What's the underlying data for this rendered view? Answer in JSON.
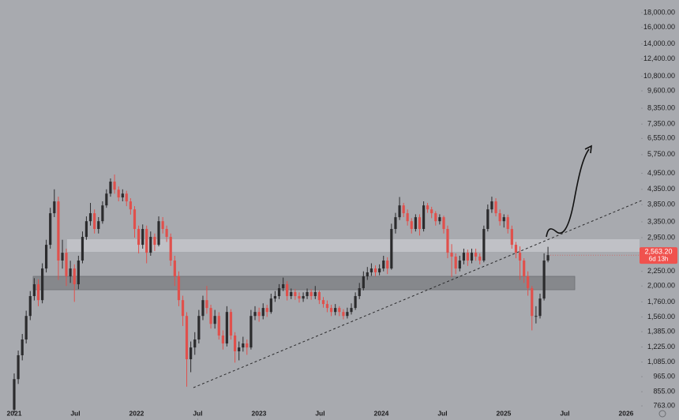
{
  "chart_data": {
    "type": "candlestick",
    "x": [
      2021.0,
      2021.033,
      2021.066,
      2021.098,
      2021.131,
      2021.164,
      2021.197,
      2021.23,
      2021.262,
      2021.295,
      2021.328,
      2021.361,
      2021.394,
      2021.426,
      2021.459,
      2021.492,
      2021.525,
      2021.558,
      2021.59,
      2021.623,
      2021.656,
      2021.689,
      2021.722,
      2021.754,
      2021.787,
      2021.82,
      2021.853,
      2021.886,
      2021.918,
      2021.951,
      2021.984,
      2022.017,
      2022.05,
      2022.082,
      2022.115,
      2022.148,
      2022.181,
      2022.214,
      2022.246,
      2022.279,
      2022.312,
      2022.345,
      2022.378,
      2022.41,
      2022.443,
      2022.476,
      2022.509,
      2022.542,
      2022.574,
      2022.607,
      2022.64,
      2022.673,
      2022.706,
      2022.738,
      2022.771,
      2022.804,
      2022.837,
      2022.87,
      2022.902,
      2022.935,
      2022.968,
      2023.001,
      2023.034,
      2023.066,
      2023.099,
      2023.132,
      2023.165,
      2023.198,
      2023.23,
      2023.263,
      2023.296,
      2023.329,
      2023.362,
      2023.394,
      2023.427,
      2023.46,
      2023.493,
      2023.526,
      2023.558,
      2023.591,
      2023.624,
      2023.657,
      2023.69,
      2023.722,
      2023.755,
      2023.788,
      2023.821,
      2023.854,
      2023.886,
      2023.919,
      2023.952,
      2023.985,
      2024.018,
      2024.05,
      2024.083,
      2024.116,
      2024.149,
      2024.182,
      2024.214,
      2024.247,
      2024.28,
      2024.313,
      2024.346,
      2024.378,
      2024.411,
      2024.444,
      2024.477,
      2024.51,
      2024.542,
      2024.575,
      2024.608,
      2024.641,
      2024.674,
      2024.706,
      2024.739,
      2024.772,
      2024.805,
      2024.838,
      2024.87,
      2024.903,
      2024.936,
      2024.969,
      2025.002,
      2025.034,
      2025.067,
      2025.1,
      2025.133,
      2025.166,
      2025.198,
      2025.231,
      2025.264,
      2025.297,
      2025.33,
      2025.362
    ],
    "open": [
      740,
      946,
      1146,
      1301,
      1572,
      1844,
      2028,
      1785,
      2302,
      2785,
      3590,
      3948,
      2454,
      2613,
      2162,
      2302,
      2028,
      2454,
      2968,
      3367,
      3590,
      3163,
      3367,
      3823,
      4203,
      4628,
      4339,
      4076,
      4203,
      3948,
      3703,
      3163,
      2785,
      3163,
      2613,
      2968,
      2785,
      3367,
      3163,
      2968,
      2454,
      2162,
      1785,
      1572,
      1110,
      1220,
      1301,
      1572,
      1785,
      1676,
      1475,
      1572,
      1343,
      1260,
      1623,
      1343,
      1183,
      1220,
      1260,
      1220,
      1572,
      1623,
      1572,
      1676,
      1623,
      1808,
      1844,
      1965,
      2028,
      1844,
      1904,
      1844,
      1808,
      1844,
      1904,
      1844,
      1904,
      1785,
      1730,
      1676,
      1623,
      1676,
      1623,
      1572,
      1623,
      1676,
      1844,
      1965,
      2162,
      2232,
      2302,
      2232,
      2302,
      2454,
      2302,
      3163,
      3477,
      3823,
      3590,
      3367,
      3163,
      3477,
      3163,
      3823,
      3703,
      3590,
      3367,
      3477,
      3163,
      2613,
      2533,
      2302,
      2454,
      2613,
      2454,
      2613,
      2533,
      2454,
      3163,
      3703,
      3948,
      3590,
      3367,
      3477,
      3163,
      2785,
      2613,
      2454,
      2162,
      1965,
      1572,
      1572,
      1808,
      2454
    ],
    "high": [
      990,
      1190,
      1360,
      1640,
      1920,
      2130,
      2110,
      2400,
      2900,
      3750,
      4350,
      4100,
      2900,
      2700,
      2450,
      2380,
      2550,
      3100,
      3500,
      3900,
      3700,
      3480,
      3950,
      4350,
      4750,
      4900,
      4450,
      4350,
      4300,
      4050,
      3800,
      3250,
      3280,
      3250,
      3100,
      3050,
      3500,
      3480,
      3250,
      3050,
      2550,
      2250,
      1850,
      1620,
      1280,
      1380,
      1650,
      1850,
      2000,
      1720,
      1650,
      1620,
      1400,
      1700,
      1660,
      1380,
      1280,
      1330,
      1300,
      1650,
      1700,
      1680,
      1740,
      1720,
      1880,
      1920,
      2030,
      2140,
      2080,
      1960,
      1950,
      1900,
      1900,
      1960,
      1950,
      2000,
      1930,
      1830,
      1780,
      1720,
      1730,
      1700,
      1660,
      1680,
      1740,
      1900,
      2050,
      2250,
      2330,
      2400,
      2360,
      2380,
      2550,
      2520,
      3300,
      3600,
      4090,
      3900,
      3700,
      3450,
      3560,
      3560,
      3950,
      3900,
      3780,
      3650,
      3560,
      3520,
      3250,
      2800,
      2600,
      2550,
      2700,
      2680,
      2700,
      2700,
      2600,
      3250,
      3850,
      4100,
      4050,
      3700,
      3560,
      3550,
      3250,
      2850,
      2750,
      2500,
      2250,
      2000,
      1700,
      1880,
      2600,
      2740
    ],
    "low": [
      720,
      910,
      1100,
      1260,
      1520,
      1780,
      1700,
      1740,
      2230,
      2700,
      3480,
      2100,
      2300,
      2000,
      2050,
      1760,
      1950,
      2400,
      2900,
      3250,
      3050,
      3050,
      3300,
      3750,
      4100,
      4200,
      3950,
      3950,
      3800,
      3550,
      2950,
      2600,
      2700,
      2400,
      2550,
      2650,
      2750,
      3050,
      2850,
      2350,
      2000,
      1700,
      1450,
      890,
      1000,
      1150,
      1260,
      1520,
      1600,
      1420,
      1420,
      1300,
      1200,
      1230,
      1300,
      1080,
      1100,
      1180,
      1150,
      1200,
      1520,
      1500,
      1530,
      1560,
      1600,
      1760,
      1800,
      1920,
      1780,
      1800,
      1790,
      1750,
      1760,
      1800,
      1790,
      1800,
      1730,
      1680,
      1620,
      1570,
      1580,
      1570,
      1530,
      1540,
      1590,
      1650,
      1800,
      1930,
      2100,
      2170,
      2160,
      2180,
      2250,
      2200,
      2280,
      3050,
      3400,
      3480,
      3250,
      3050,
      3100,
      3000,
      3100,
      3600,
      3450,
      3250,
      3280,
      3050,
      2500,
      2150,
      2200,
      2250,
      2380,
      2350,
      2400,
      2450,
      2380,
      2420,
      3100,
      3600,
      3500,
      3250,
      3200,
      3050,
      2700,
      2500,
      2100,
      2050,
      1850,
      1400,
      1480,
      1540,
      1780,
      2420
    ],
    "close": [
      946,
      1146,
      1301,
      1572,
      1844,
      2028,
      1785,
      2302,
      2785,
      3590,
      3948,
      2454,
      2613,
      2162,
      2302,
      2028,
      2454,
      2968,
      3367,
      3590,
      3163,
      3367,
      3823,
      4203,
      4628,
      4339,
      4076,
      4203,
      3948,
      3703,
      3163,
      2785,
      3163,
      2613,
      2968,
      2785,
      3367,
      3163,
      2968,
      2454,
      2162,
      1785,
      1572,
      1110,
      1220,
      1301,
      1572,
      1785,
      1676,
      1475,
      1572,
      1343,
      1260,
      1623,
      1343,
      1183,
      1220,
      1260,
      1220,
      1572,
      1623,
      1572,
      1676,
      1623,
      1808,
      1844,
      1965,
      2028,
      1844,
      1904,
      1844,
      1808,
      1844,
      1904,
      1844,
      1904,
      1785,
      1730,
      1676,
      1623,
      1676,
      1623,
      1572,
      1623,
      1676,
      1844,
      1965,
      2162,
      2232,
      2302,
      2232,
      2302,
      2454,
      2302,
      3163,
      3477,
      3823,
      3590,
      3367,
      3163,
      3477,
      3163,
      3823,
      3703,
      3590,
      3367,
      3477,
      3163,
      2613,
      2533,
      2302,
      2454,
      2613,
      2454,
      2613,
      2533,
      2454,
      3163,
      3703,
      3948,
      3590,
      3367,
      3477,
      3163,
      2785,
      2613,
      2454,
      2162,
      1965,
      1572,
      1572,
      1808,
      2454,
      2563.2
    ],
    "up_color": "#2b2b2d",
    "down_color": "#e0504c",
    "xlim": [
      2020.884,
      2026.11
    ],
    "xticks": [
      2021,
      {
        "value": 2021.5,
        "label": "Jul"
      },
      2022,
      {
        "value": 2022.5,
        "label": "Jul"
      },
      2023,
      {
        "value": 2023.5,
        "label": "Jul"
      },
      2024,
      {
        "value": 2024.5,
        "label": "Jul"
      },
      2025,
      {
        "value": 2025.5,
        "label": "Jul"
      },
      2026
    ],
    "ylim": [
      681,
      19930
    ],
    "log_scale": true,
    "yticks": [
      {
        "value": 18000,
        "label": "18,000.00"
      },
      {
        "value": 16000,
        "label": "16,000.00"
      },
      {
        "value": 14000,
        "label": "14,000.00"
      },
      {
        "value": 12400,
        "label": "12,400.00"
      },
      {
        "value": 10800,
        "label": "10,800.00"
      },
      {
        "value": 9600,
        "label": "9,600.00"
      },
      {
        "value": 8350,
        "label": "8,350.00"
      },
      {
        "value": 7350,
        "label": "7,350.00"
      },
      {
        "value": 6550,
        "label": "6,550.00"
      },
      {
        "value": 5750,
        "label": "5,750.00"
      },
      {
        "value": 4950,
        "label": "4,950.00"
      },
      {
        "value": 4350,
        "label": "4,350.00"
      },
      {
        "value": 3850,
        "label": "3,850.00"
      },
      {
        "value": 3350,
        "label": "3,350.00"
      },
      {
        "value": 2950,
        "label": "2,950.00"
      },
      {
        "value": 2250,
        "label": "2,250.00"
      },
      {
        "value": 2000,
        "label": "2,000.00"
      },
      {
        "value": 1760,
        "label": "1,760.00"
      },
      {
        "value": 1560,
        "label": "1,560.00"
      },
      {
        "value": 1385,
        "label": "1,385.00"
      },
      {
        "value": 1225,
        "label": "1,225.00"
      },
      {
        "value": 1085,
        "label": "1,085.00"
      },
      {
        "value": 965,
        "label": "965.00"
      },
      {
        "value": 855,
        "label": "855.00"
      },
      {
        "value": 763,
        "label": "763.00"
      }
    ],
    "last_price": {
      "value": 2563.2,
      "label": "2,563.20"
    },
    "countdown": "6d 13h"
  }
}
